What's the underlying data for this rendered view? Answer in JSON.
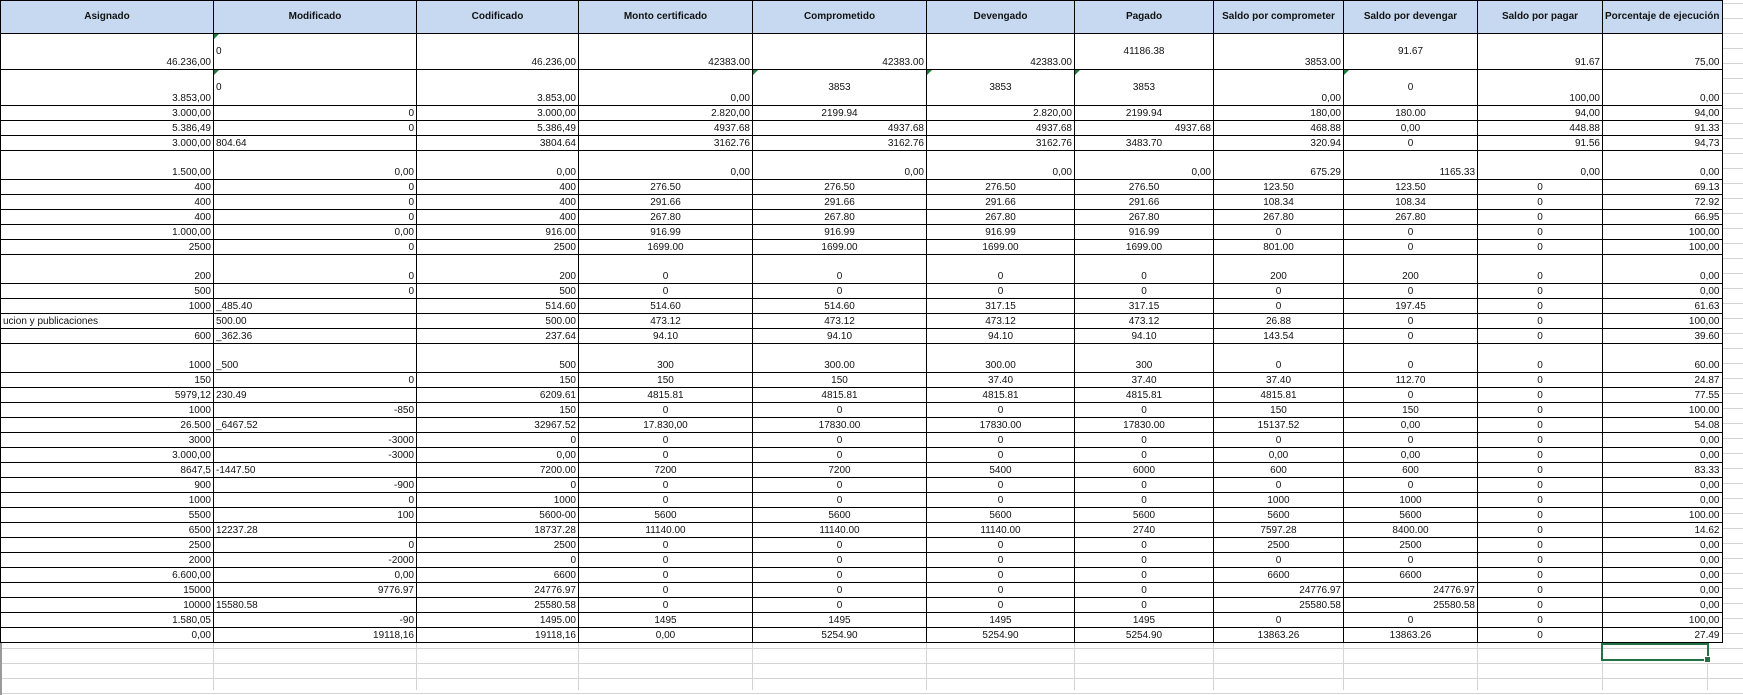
{
  "headers": [
    "Asignado",
    "Modificado",
    "Codificado",
    "Monto certificado",
    "Comprometido",
    "Devengado",
    "Pagado",
    "Saldo por comprometer",
    "Saldo por devengar",
    "Saldo por pagar",
    "Porcentaje de ejecución"
  ],
  "rows": [
    [
      "46.236,00",
      "0",
      "46.236,00",
      "42383.00",
      "42383.00",
      "42383.00",
      "41186.38",
      "3853.00",
      "91.67",
      "91.67",
      "75,00"
    ],
    [
      "3.853,00",
      "0",
      "3.853,00",
      "0,00",
      "3853",
      "3853",
      "3853",
      "0,00",
      "0",
      "100,00",
      "0,00"
    ],
    [
      "3.000,00",
      "0",
      "3.000,00",
      "2.820,00",
      "2199.94",
      "2.820,00",
      "2199.94",
      "180,00",
      "180.00",
      "94,00",
      "94,00"
    ],
    [
      "5.386,49",
      "0",
      "5.386,49",
      "4937.68",
      "4937.68",
      "4937.68",
      "4937.68",
      "468.88",
      "0,00",
      "448.88",
      "91.33"
    ],
    [
      "3.000,00",
      "804.64",
      "3804.64",
      "3162.76",
      "3162.76",
      "3162.76",
      "3483.70",
      "320.94",
      "0",
      "91.56",
      "94,73"
    ],
    [
      "1.500,00",
      "0,00",
      "0,00",
      "0,00",
      "0,00",
      "0,00",
      "0,00",
      "675.29",
      "1165.33",
      "0,00",
      "0,00"
    ],
    [
      "400",
      "0",
      "400",
      "276.50",
      "276.50",
      "276.50",
      "276.50",
      "123.50",
      "123.50",
      "0",
      "69.13"
    ],
    [
      "400",
      "0",
      "400",
      "291.66",
      "291.66",
      "291.66",
      "291.66",
      "108.34",
      "108.34",
      "0",
      "72.92"
    ],
    [
      "400",
      "0",
      "400",
      "267.80",
      "267.80",
      "267.80",
      "267.80",
      "267.80",
      "267.80",
      "0",
      "66.95"
    ],
    [
      "1.000,00",
      "0,00",
      "916.00",
      "916.99",
      "916.99",
      "916.99",
      "916.99",
      "0",
      "0",
      "0",
      "100,00"
    ],
    [
      "2500",
      "0",
      "2500",
      "1699.00",
      "1699.00",
      "1699.00",
      "1699.00",
      "801.00",
      "0",
      "0",
      "100,00"
    ],
    [
      "200",
      "0",
      "200",
      "0",
      "0",
      "0",
      "0",
      "200",
      "200",
      "0",
      "0,00"
    ],
    [
      "500",
      "0",
      "500",
      "0",
      "0",
      "0",
      "0",
      "0",
      "0",
      "0",
      "0,00"
    ],
    [
      "1000",
      "_485.40",
      "514.60",
      "514.60",
      "514.60",
      "317.15",
      "317.15",
      "0",
      "197.45",
      "0",
      "61.63"
    ],
    [
      "ucion y publicaciones",
      "500.00",
      "500.00",
      "473.12",
      "473.12",
      "473.12",
      "473.12",
      "26.88",
      "0",
      "0",
      "100,00"
    ],
    [
      "600",
      "_362.36",
      "237.64",
      "94.10",
      "94.10",
      "94.10",
      "94.10",
      "143.54",
      "0",
      "0",
      "39.60"
    ],
    [
      "1000",
      "_500",
      "500",
      "300",
      "300.00",
      "300.00",
      "300",
      "0",
      "0",
      "0",
      "60.00"
    ],
    [
      "150",
      "0",
      "150",
      "150",
      "150",
      "37.40",
      "37.40",
      "37.40",
      "112.70",
      "0",
      "24.87"
    ],
    [
      "5979,12",
      "230.49",
      "6209.61",
      "4815.81",
      "4815.81",
      "4815.81",
      "4815.81",
      "4815.81",
      "0",
      "0",
      "77.55"
    ],
    [
      "1000",
      "-850",
      "150",
      "0",
      "0",
      "0",
      "0",
      "150",
      "150",
      "0",
      "100.00"
    ],
    [
      "26.500",
      "_6467.52",
      "32967.52",
      "17.830,00",
      "17830.00",
      "17830.00",
      "17830.00",
      "15137.52",
      "0,00",
      "0",
      "54.08"
    ],
    [
      "3000",
      "-3000",
      "0",
      "0",
      "0",
      "0",
      "0",
      "0",
      "0",
      "0",
      "0,00"
    ],
    [
      "3.000,00",
      "-3000",
      "0,00",
      "0",
      "0",
      "0",
      "0",
      "0,00",
      "0,00",
      "0",
      "0,00"
    ],
    [
      "8647,5",
      "-1447.50",
      "7200.00",
      "7200",
      "7200",
      "5400",
      "6000",
      "600",
      "600",
      "0",
      "83.33"
    ],
    [
      "900",
      "-900",
      "0",
      "0",
      "0",
      "0",
      "0",
      "0",
      "0",
      "0",
      "0,00"
    ],
    [
      "1000",
      "0",
      "1000",
      "0",
      "0",
      "0",
      "0",
      "1000",
      "1000",
      "0",
      "0,00"
    ],
    [
      "5500",
      "100",
      "5600-00",
      "5600",
      "5600",
      "5600",
      "5600",
      "5600",
      "5600",
      "0",
      "100.00"
    ],
    [
      "6500",
      "12237.28",
      "18737.28",
      "11140.00",
      "11140.00",
      "11140.00",
      "2740",
      "7597.28",
      "8400.00",
      "0",
      "14.62"
    ],
    [
      "2500",
      "0",
      "2500",
      "0",
      "0",
      "0",
      "0",
      "2500",
      "2500",
      "0",
      "0,00"
    ],
    [
      "2000",
      "-2000",
      "0",
      "0",
      "0",
      "0",
      "0",
      "0",
      "0",
      "0",
      "0,00"
    ],
    [
      "6.600,00",
      "0,00",
      "6600",
      "0",
      "0",
      "0",
      "0",
      "6600",
      "6600",
      "0",
      "0,00"
    ],
    [
      "15000",
      "9776.97",
      "24776.97",
      "0",
      "0",
      "0",
      "0",
      "24776.97",
      "24776.97",
      "0",
      "0,00"
    ],
    [
      "10000",
      "15580.58",
      "25580.58",
      "0",
      "0",
      "0",
      "0",
      "25580.58",
      "25580.58",
      "0",
      "0,00"
    ],
    [
      "1.580,05",
      "-90",
      "1495.00",
      "1495",
      "1495",
      "1495",
      "1495",
      "0",
      "0",
      "0",
      "100,00"
    ],
    [
      "0,00",
      "19118,16",
      "19118,16",
      "0,00",
      "5254.90",
      "5254.90",
      "5254.90",
      "13863.26",
      "13863.26",
      "0",
      "27.49"
    ]
  ],
  "colors": {
    "header_bg": "#c6d9f1",
    "selection": "#217346",
    "comment_flag": "#1e7a3a"
  }
}
